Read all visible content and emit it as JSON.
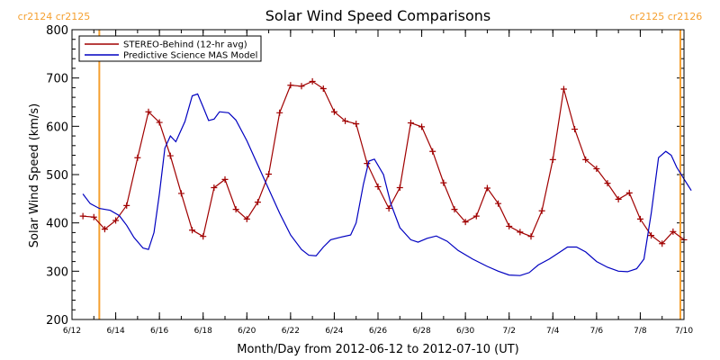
{
  "chart_data": {
    "type": "line",
    "title": "Solar Wind Speed Comparisons",
    "xlabel": "Month/Day from 2012-06-12 to 2012-07-10 (UT)",
    "ylabel": "Solar Wind Speed (km/s)",
    "xlim": [
      "2012-06-12",
      "2012-07-10"
    ],
    "ylim": [
      200,
      800
    ],
    "xticks": [
      {
        "date": "2012-06-12",
        "label": "6/12"
      },
      {
        "date": "2012-06-14",
        "label": "6/14"
      },
      {
        "date": "2012-06-16",
        "label": "6/16"
      },
      {
        "date": "2012-06-18",
        "label": "6/18"
      },
      {
        "date": "2012-06-20",
        "label": "6/20"
      },
      {
        "date": "2012-06-22",
        "label": "6/22"
      },
      {
        "date": "2012-06-24",
        "label": "6/24"
      },
      {
        "date": "2012-06-26",
        "label": "6/26"
      },
      {
        "date": "2012-06-28",
        "label": "6/28"
      },
      {
        "date": "2012-06-30",
        "label": "6/30"
      },
      {
        "date": "2012-07-02",
        "label": "7/2"
      },
      {
        "date": "2012-07-04",
        "label": "7/4"
      },
      {
        "date": "2012-07-06",
        "label": "7/6"
      },
      {
        "date": "2012-07-08",
        "label": "7/8"
      },
      {
        "date": "2012-07-10",
        "label": "7/10"
      }
    ],
    "yticks": [
      200,
      300,
      400,
      500,
      600,
      700,
      800
    ],
    "legend_position": "top-left",
    "markers": [
      {
        "date": "2012-06-13 06:00",
        "left_label": "cr2124",
        "right_label": "cr2125",
        "label_side": "left",
        "color": "#f5a030"
      },
      {
        "date": "2012-07-09 20:00",
        "left_label": "cr2125",
        "right_label": "cr2126",
        "label_side": "right",
        "color": "#f5a030"
      }
    ],
    "series": [
      {
        "name": "STEREO-Behind (12-hr avg)",
        "color": "#a00000",
        "marker": "plus",
        "points": [
          [
            "2012-06-12 12:00",
            414
          ],
          [
            "2012-06-13 00:00",
            412
          ],
          [
            "2012-06-13 12:00",
            387
          ],
          [
            "2012-06-14 00:00",
            405
          ],
          [
            "2012-06-14 12:00",
            436
          ],
          [
            "2012-06-15 00:00",
            535
          ],
          [
            "2012-06-15 12:00",
            630
          ],
          [
            "2012-06-16 00:00",
            608
          ],
          [
            "2012-06-16 12:00",
            539
          ],
          [
            "2012-06-17 00:00",
            461
          ],
          [
            "2012-06-17 12:00",
            385
          ],
          [
            "2012-06-18 00:00",
            372
          ],
          [
            "2012-06-18 12:00",
            473
          ],
          [
            "2012-06-19 00:00",
            490
          ],
          [
            "2012-06-19 12:00",
            428
          ],
          [
            "2012-06-20 00:00",
            408
          ],
          [
            "2012-06-20 12:00",
            443
          ],
          [
            "2012-06-21 00:00",
            501
          ],
          [
            "2012-06-21 12:00",
            628
          ],
          [
            "2012-06-22 00:00",
            685
          ],
          [
            "2012-06-22 12:00",
            683
          ],
          [
            "2012-06-23 00:00",
            693
          ],
          [
            "2012-06-23 12:00",
            678
          ],
          [
            "2012-06-24 00:00",
            630
          ],
          [
            "2012-06-24 12:00",
            611
          ],
          [
            "2012-06-25 00:00",
            605
          ],
          [
            "2012-06-25 12:00",
            523
          ],
          [
            "2012-06-26 00:00",
            475
          ],
          [
            "2012-06-26 12:00",
            430
          ],
          [
            "2012-06-27 00:00",
            473
          ],
          [
            "2012-06-27 12:00",
            607
          ],
          [
            "2012-06-28 00:00",
            599
          ],
          [
            "2012-06-28 12:00",
            548
          ],
          [
            "2012-06-29 00:00",
            483
          ],
          [
            "2012-06-29 12:00",
            428
          ],
          [
            "2012-06-30 00:00",
            402
          ],
          [
            "2012-06-30 12:00",
            414
          ],
          [
            "2012-07-01 00:00",
            472
          ],
          [
            "2012-07-01 12:00",
            440
          ],
          [
            "2012-07-02 00:00",
            393
          ],
          [
            "2012-07-02 12:00",
            381
          ],
          [
            "2012-07-03 00:00",
            372
          ],
          [
            "2012-07-03 12:00",
            425
          ],
          [
            "2012-07-04 00:00",
            531
          ],
          [
            "2012-07-04 12:00",
            677
          ],
          [
            "2012-07-05 00:00",
            594
          ],
          [
            "2012-07-05 12:00",
            531
          ],
          [
            "2012-07-06 00:00",
            512
          ],
          [
            "2012-07-06 12:00",
            482
          ],
          [
            "2012-07-07 00:00",
            449
          ],
          [
            "2012-07-07 12:00",
            462
          ],
          [
            "2012-07-08 00:00",
            408
          ],
          [
            "2012-07-08 12:00",
            374
          ],
          [
            "2012-07-09 00:00",
            357
          ],
          [
            "2012-07-09 12:00",
            382
          ],
          [
            "2012-07-10 00:00",
            365
          ]
        ]
      },
      {
        "name": "Predictive Science MAS Model",
        "color": "#0000c0",
        "marker": "none",
        "points": [
          [
            "2012-06-12 12:00",
            460
          ],
          [
            "2012-06-12 20:00",
            440
          ],
          [
            "2012-06-13 06:00",
            430
          ],
          [
            "2012-06-13 18:00",
            426
          ],
          [
            "2012-06-14 04:00",
            415
          ],
          [
            "2012-06-14 12:00",
            395
          ],
          [
            "2012-06-14 20:00",
            370
          ],
          [
            "2012-06-15 06:00",
            348
          ],
          [
            "2012-06-15 12:00",
            345
          ],
          [
            "2012-06-15 18:00",
            380
          ],
          [
            "2012-06-16 00:00",
            460
          ],
          [
            "2012-06-16 06:00",
            555
          ],
          [
            "2012-06-16 12:00",
            580
          ],
          [
            "2012-06-16 18:00",
            568
          ],
          [
            "2012-06-17 04:00",
            610
          ],
          [
            "2012-06-17 12:00",
            663
          ],
          [
            "2012-06-17 18:00",
            667
          ],
          [
            "2012-06-18 00:00",
            640
          ],
          [
            "2012-06-18 06:00",
            612
          ],
          [
            "2012-06-18 12:00",
            615
          ],
          [
            "2012-06-18 18:00",
            630
          ],
          [
            "2012-06-19 04:00",
            628
          ],
          [
            "2012-06-19 12:00",
            613
          ],
          [
            "2012-06-20 00:00",
            570
          ],
          [
            "2012-06-20 12:00",
            520
          ],
          [
            "2012-06-21 00:00",
            470
          ],
          [
            "2012-06-21 12:00",
            420
          ],
          [
            "2012-06-22 00:00",
            375
          ],
          [
            "2012-06-22 12:00",
            345
          ],
          [
            "2012-06-22 20:00",
            333
          ],
          [
            "2012-06-23 04:00",
            332
          ],
          [
            "2012-06-23 12:00",
            350
          ],
          [
            "2012-06-23 20:00",
            365
          ],
          [
            "2012-06-24 06:00",
            370
          ],
          [
            "2012-06-24 18:00",
            375
          ],
          [
            "2012-06-25 00:00",
            400
          ],
          [
            "2012-06-25 08:00",
            480
          ],
          [
            "2012-06-25 14:00",
            528
          ],
          [
            "2012-06-25 20:00",
            532
          ],
          [
            "2012-06-26 06:00",
            500
          ],
          [
            "2012-06-26 14:00",
            440
          ],
          [
            "2012-06-27 00:00",
            390
          ],
          [
            "2012-06-27 12:00",
            365
          ],
          [
            "2012-06-27 20:00",
            360
          ],
          [
            "2012-06-28 06:00",
            368
          ],
          [
            "2012-06-28 16:00",
            373
          ],
          [
            "2012-06-29 04:00",
            362
          ],
          [
            "2012-06-29 16:00",
            343
          ],
          [
            "2012-06-30 08:00",
            325
          ],
          [
            "2012-07-01 00:00",
            310
          ],
          [
            "2012-07-01 12:00",
            300
          ],
          [
            "2012-07-02 00:00",
            292
          ],
          [
            "2012-07-02 12:00",
            291
          ],
          [
            "2012-07-02 22:00",
            297
          ],
          [
            "2012-07-03 08:00",
            313
          ],
          [
            "2012-07-03 20:00",
            325
          ],
          [
            "2012-07-04 08:00",
            340
          ],
          [
            "2012-07-04 16:00",
            350
          ],
          [
            "2012-07-05 02:00",
            350
          ],
          [
            "2012-07-05 12:00",
            340
          ],
          [
            "2012-07-06 00:00",
            320
          ],
          [
            "2012-07-06 12:00",
            308
          ],
          [
            "2012-07-07 00:00",
            300
          ],
          [
            "2012-07-07 10:00",
            299
          ],
          [
            "2012-07-07 20:00",
            305
          ],
          [
            "2012-07-08 04:00",
            325
          ],
          [
            "2012-07-08 12:00",
            420
          ],
          [
            "2012-07-08 20:00",
            535
          ],
          [
            "2012-07-09 04:00",
            548
          ],
          [
            "2012-07-09 10:00",
            540
          ],
          [
            "2012-07-09 16:00",
            515
          ],
          [
            "2012-07-10 02:00",
            485
          ],
          [
            "2012-07-10 08:00",
            467
          ]
        ]
      }
    ]
  }
}
